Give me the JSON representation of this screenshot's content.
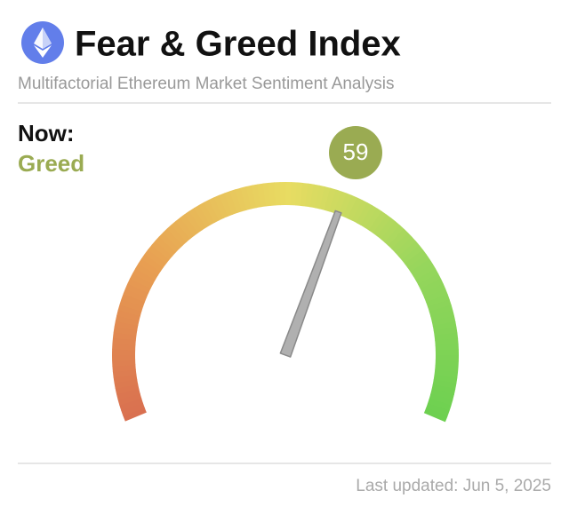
{
  "chart_data": {
    "type": "gauge",
    "title": "Fear & Greed Index",
    "subtitle": "Multifactorial Ethereum Market Sentiment Analysis",
    "now_label": "Now:",
    "status": "Greed",
    "value": 59,
    "color": "#9aab52",
    "ylim": [
      0,
      100
    ],
    "footer": "Last updated: Jun 5, 2025"
  }
}
